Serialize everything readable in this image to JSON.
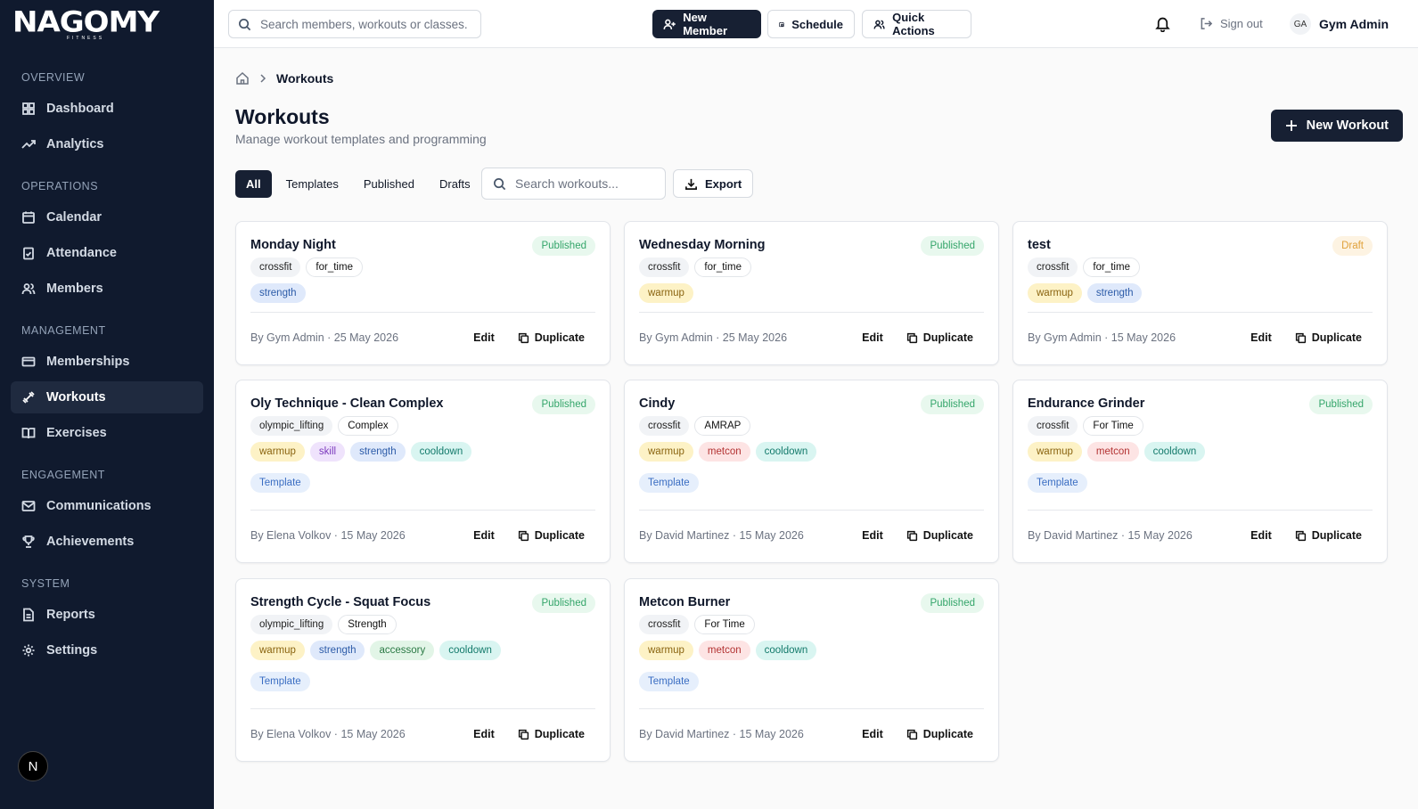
{
  "brand": {
    "logo": "NAGOMY",
    "sub": "FITNESS"
  },
  "sidebar": {
    "sections": [
      {
        "title": "OVERVIEW",
        "items": [
          "Dashboard",
          "Analytics"
        ]
      },
      {
        "title": "OPERATIONS",
        "items": [
          "Calendar",
          "Attendance",
          "Members"
        ]
      },
      {
        "title": "MANAGEMENT",
        "items": [
          "Memberships",
          "Workouts",
          "Exercises"
        ]
      },
      {
        "title": "ENGAGEMENT",
        "items": [
          "Communications",
          "Achievements"
        ]
      },
      {
        "title": "SYSTEM",
        "items": [
          "Reports",
          "Settings"
        ]
      }
    ],
    "badge": "N"
  },
  "topbar": {
    "search_placeholder": "Search members, workouts or classes.",
    "new_member": "New Member",
    "schedule": "Schedule",
    "quick_actions": "Quick Actions",
    "sign_out": "Sign out",
    "avatar_initials": "GA",
    "user_name": "Gym Admin"
  },
  "page": {
    "breadcrumb": "Workouts",
    "title": "Workouts",
    "subtitle": "Manage workout templates and programming",
    "new_workout": "New Workout",
    "tabs": [
      "All",
      "Templates",
      "Published",
      "Drafts"
    ],
    "search_placeholder": "Search workouts...",
    "export": "Export"
  },
  "cards": [
    {
      "name": "Monday Night",
      "status": "Published",
      "tags": [
        "crossfit",
        "for_time"
      ],
      "sections": [
        "strength"
      ],
      "template": "",
      "by": "By Gym Admin · 25 May 2026"
    },
    {
      "name": "Wednesday Morning",
      "status": "Published",
      "tags": [
        "crossfit",
        "for_time"
      ],
      "sections": [
        "warmup"
      ],
      "template": "",
      "by": "By Gym Admin · 25 May 2026"
    },
    {
      "name": "test",
      "status": "Draft",
      "tags": [
        "crossfit",
        "for_time"
      ],
      "sections": [
        "warmup",
        "strength"
      ],
      "template": "",
      "by": "By Gym Admin · 15 May 2026"
    },
    {
      "name": "Oly Technique - Clean Complex",
      "status": "Published",
      "tags": [
        "olympic_lifting",
        "Complex"
      ],
      "sections": [
        "warmup",
        "skill",
        "strength",
        "cooldown"
      ],
      "template": "Template",
      "by": "By Elena Volkov · 15 May 2026"
    },
    {
      "name": "Cindy",
      "status": "Published",
      "tags": [
        "crossfit",
        "AMRAP"
      ],
      "sections": [
        "warmup",
        "metcon",
        "cooldown"
      ],
      "template": "Template",
      "by": "By David Martinez · 15 May 2026"
    },
    {
      "name": "Endurance Grinder",
      "status": "Published",
      "tags": [
        "crossfit",
        "For Time"
      ],
      "sections": [
        "warmup",
        "metcon",
        "cooldown"
      ],
      "template": "Template",
      "by": "By David Martinez · 15 May 2026"
    },
    {
      "name": "Strength Cycle - Squat Focus",
      "status": "Published",
      "tags": [
        "olympic_lifting",
        "Strength"
      ],
      "sections": [
        "warmup",
        "strength",
        "accessory",
        "cooldown"
      ],
      "template": "Template",
      "by": "By Elena Volkov · 15 May 2026"
    },
    {
      "name": "Metcon Burner",
      "status": "Published",
      "tags": [
        "crossfit",
        "For Time"
      ],
      "sections": [
        "warmup",
        "metcon",
        "cooldown"
      ],
      "template": "Template",
      "by": "By David Martinez · 15 May 2026"
    }
  ],
  "actions": {
    "edit": "Edit",
    "duplicate": "Duplicate"
  }
}
